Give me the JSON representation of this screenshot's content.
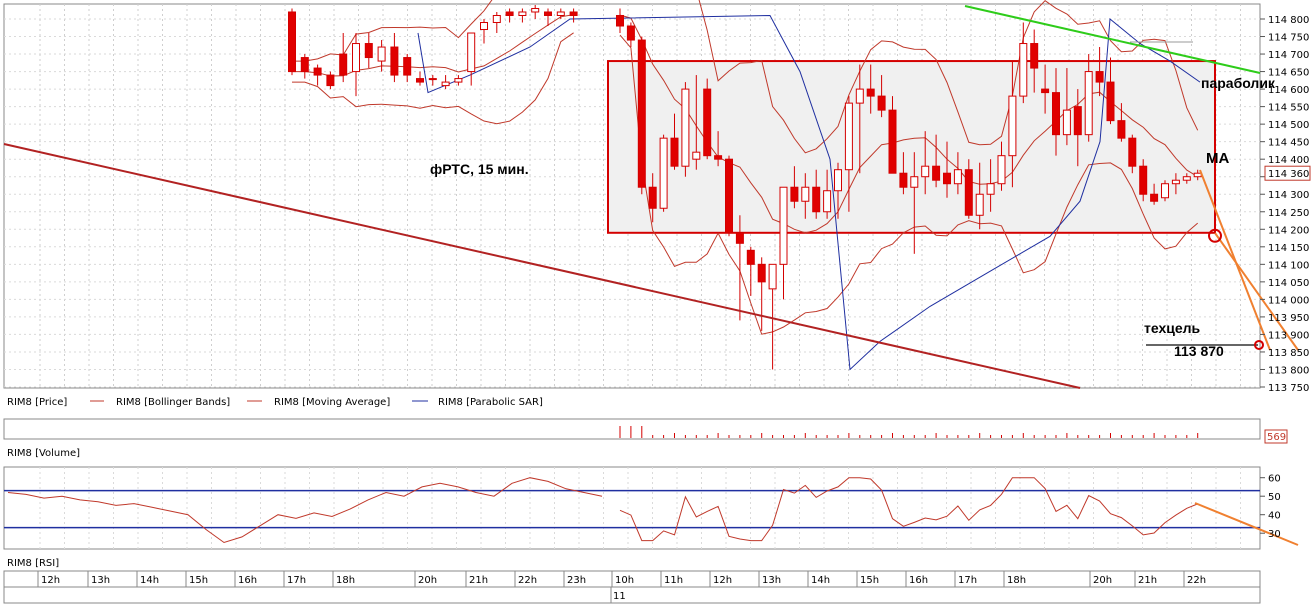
{
  "chart_data": {
    "type": "candlestick",
    "instrument": "RIM8",
    "price_axis": {
      "ticks": [
        "114 800",
        "114 750",
        "114 700",
        "114 650",
        "114 600",
        "114 550",
        "114 500",
        "114 450",
        "114 400",
        "114 350",
        "114 300",
        "114 250",
        "114 200",
        "114 150",
        "114 100",
        "114 050",
        "114 000",
        "113 950",
        "113 900",
        "113 850",
        "113 800",
        "113 750"
      ],
      "range": [
        113750,
        114830
      ],
      "last_price_label": "114 360",
      "last_price": 114360
    },
    "rsi_axis": {
      "ticks": [
        "60",
        "50",
        "40",
        "30"
      ],
      "range": [
        22,
        62
      ],
      "bands": [
        53,
        33
      ]
    },
    "volume_label": "569",
    "time_axis": [
      "12h",
      "13h",
      "14h",
      "15h",
      "16h",
      "17h",
      "18h",
      "20h",
      "21h",
      "22h",
      "23h",
      "10h",
      "11h",
      "12h",
      "13h",
      "14h",
      "15h",
      "16h",
      "17h",
      "18h",
      "20h",
      "21h",
      "22h"
    ],
    "date_label": "11",
    "legend": [
      "RIM8 [Price]",
      "RIM8 [Bollinger Bands]",
      "RIM8 [Moving Average]",
      "RIM8 [Parabolic SAR]"
    ],
    "legend_colors": [
      "#8b1a1a",
      "#c0392b",
      "#c0392b",
      "#1f2fa0"
    ],
    "panel_labels": {
      "volume": "RIM8 [Volume]",
      "rsi": "RIM8 [RSI]"
    },
    "annotations": {
      "title": "фРТС, 15 мин.",
      "parabolic": "параболик",
      "ma": "МА",
      "target_label": "техцель",
      "target_value": "113 870"
    },
    "target_price": 113870,
    "range_box": [
      114190,
      114680
    ],
    "candles": [
      [
        114820,
        114830,
        114640,
        114650
      ],
      [
        114690,
        114700,
        114630,
        114650
      ],
      [
        114660,
        114670,
        114610,
        114640
      ],
      [
        114640,
        114650,
        114600,
        114610
      ],
      [
        114700,
        114760,
        114620,
        114640
      ],
      [
        114650,
        114760,
        114580,
        114730
      ],
      [
        114730,
        114760,
        114660,
        114690
      ],
      [
        114680,
        114740,
        114650,
        114720
      ],
      [
        114720,
        114760,
        114620,
        114640
      ],
      [
        114690,
        114700,
        114620,
        114640
      ],
      [
        114630,
        114650,
        114610,
        114620
      ],
      [
        114630,
        114640,
        114610,
        114630
      ],
      [
        114610,
        114640,
        114600,
        114620
      ],
      [
        114620,
        114640,
        114610,
        114630
      ],
      [
        114650,
        114760,
        114610,
        114760
      ],
      [
        114770,
        114800,
        114730,
        114790
      ],
      [
        114790,
        114820,
        114760,
        114810
      ],
      [
        114820,
        114830,
        114790,
        114810
      ],
      [
        114810,
        114830,
        114790,
        114820
      ],
      [
        114820,
        114840,
        114800,
        114830
      ],
      [
        114820,
        114830,
        114780,
        114810
      ],
      [
        114810,
        114830,
        114800,
        114820
      ],
      [
        114820,
        114830,
        114790,
        114810
      ],
      [
        114810,
        114830,
        114760,
        114780
      ],
      [
        114780,
        114790,
        114720,
        114740
      ],
      [
        114740,
        114750,
        114300,
        114320
      ],
      [
        114320,
        114360,
        114220,
        114260
      ],
      [
        114260,
        114470,
        114250,
        114460
      ],
      [
        114460,
        114530,
        114370,
        114380
      ],
      [
        114380,
        114620,
        114350,
        114600
      ],
      [
        114400,
        114640,
        114370,
        114420
      ],
      [
        114600,
        114630,
        114400,
        114410
      ],
      [
        114410,
        114480,
        114380,
        114400
      ],
      [
        114400,
        114410,
        114180,
        114190
      ],
      [
        114190,
        114240,
        113940,
        114160
      ],
      [
        114140,
        114150,
        114010,
        114100
      ],
      [
        114100,
        114120,
        113910,
        114050
      ],
      [
        114030,
        114100,
        113800,
        114100
      ],
      [
        114100,
        114320,
        114000,
        114320
      ],
      [
        114320,
        114380,
        114260,
        114280
      ],
      [
        114280,
        114360,
        114230,
        114320
      ],
      [
        114320,
        114370,
        114230,
        114250
      ],
      [
        114250,
        114370,
        114230,
        114310
      ],
      [
        114310,
        114390,
        114230,
        114370
      ],
      [
        114370,
        114580,
        114250,
        114560
      ],
      [
        114560,
        114670,
        114360,
        114600
      ],
      [
        114600,
        114670,
        114530,
        114580
      ],
      [
        114580,
        114640,
        114520,
        114540
      ],
      [
        114540,
        114580,
        114360,
        114360
      ],
      [
        114360,
        114420,
        114300,
        114320
      ],
      [
        114320,
        114420,
        114130,
        114350
      ],
      [
        114350,
        114480,
        114300,
        114380
      ],
      [
        114380,
        114470,
        114320,
        114340
      ],
      [
        114360,
        114450,
        114290,
        114330
      ],
      [
        114330,
        114420,
        114300,
        114370
      ],
      [
        114370,
        114400,
        114230,
        114240
      ],
      [
        114240,
        114390,
        114200,
        114300
      ],
      [
        114300,
        114400,
        114250,
        114330
      ],
      [
        114330,
        114450,
        114310,
        114410
      ],
      [
        114410,
        114680,
        114320,
        114580
      ],
      [
        114580,
        114790,
        114560,
        114730
      ],
      [
        114730,
        114770,
        114590,
        114660
      ],
      [
        114600,
        114670,
        114530,
        114590
      ],
      [
        114590,
        114660,
        114410,
        114470
      ],
      [
        114470,
        114660,
        114440,
        114540
      ],
      [
        114550,
        114600,
        114380,
        114470
      ],
      [
        114470,
        114700,
        114450,
        114650
      ],
      [
        114650,
        114720,
        114580,
        114620
      ],
      [
        114620,
        114690,
        114500,
        114510
      ],
      [
        114510,
        114560,
        114450,
        114460
      ],
      [
        114460,
        114470,
        114360,
        114380
      ],
      [
        114380,
        114400,
        114280,
        114300
      ],
      [
        114300,
        114330,
        114270,
        114280
      ],
      [
        114290,
        114340,
        114280,
        114330
      ],
      [
        114330,
        114360,
        114300,
        114340
      ],
      [
        114340,
        114360,
        114330,
        114350
      ],
      [
        114350,
        114370,
        114340,
        114360
      ]
    ]
  }
}
